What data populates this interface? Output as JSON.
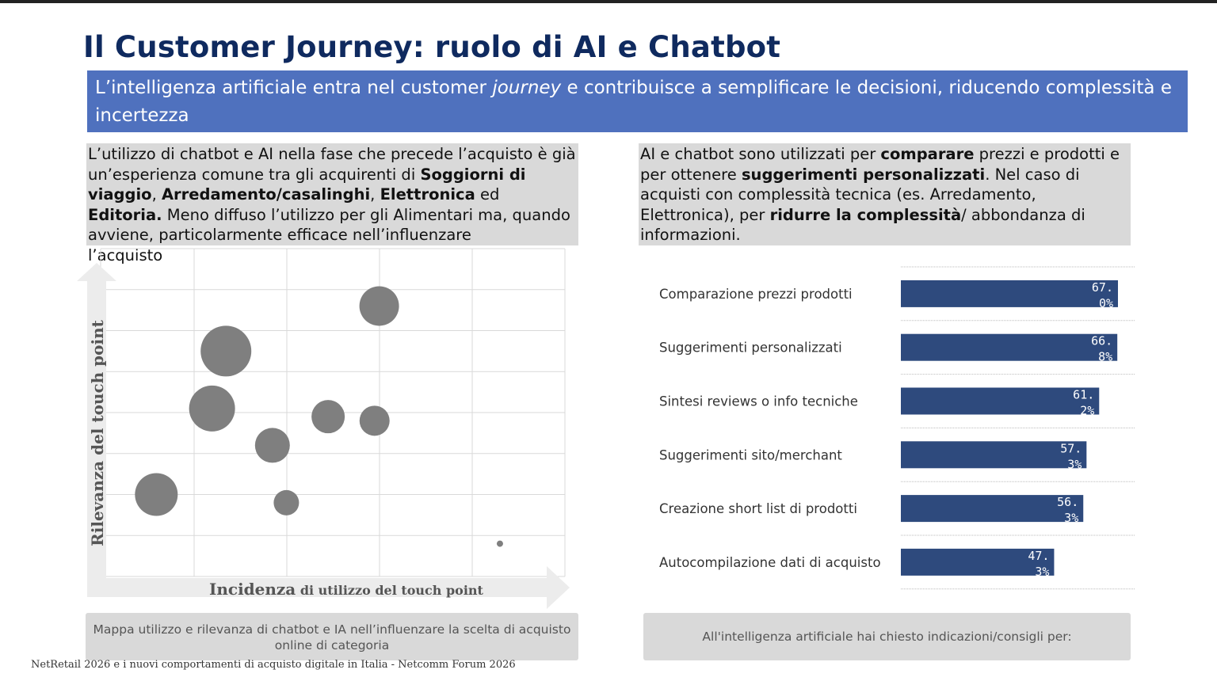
{
  "title": "Il Customer Journey: ruolo di AI e Chatbot",
  "banner": {
    "part1": "L’intelligenza artificiale entra nel customer ",
    "italic": "journey",
    "part2": " e contribuisce a semplificare le decisioni, riducendo complessità e incertezza"
  },
  "left_text": {
    "t1": "L’utilizzo di chatbot e AI nella fase che precede l’acquisto è già un’esperienza comune tra gli acquirenti di ",
    "b1": "Soggiorni di viaggio",
    "t2": ", ",
    "b2": "Arredamento/casalinghi",
    "t3": ", ",
    "b3": "Elettronica",
    "t4": " ed ",
    "b4": "Editoria.",
    "t5": " Meno diffuso l’utilizzo per gli Alimentari ma, quando avviene, particolarmente efficace nell’influenzare",
    "t6": "l’acquisto"
  },
  "right_text": {
    "t1": "AI e chatbot sono utilizzati per ",
    "b1": "comparare",
    "t2": " prezzi e prodotti e per ottenere ",
    "b2": "suggerimenti personalizzati",
    "t3": ". Nel caso di acquisti con complessità tecnica (es. Arredamento, Elettronica), per ",
    "b3": "ridurre la complessità",
    "t4": "/ abbondanza di informazioni."
  },
  "captions": {
    "left": "Mappa utilizzo e rilevanza di chatbot e IA nell’influenzare la scelta di acquisto online di categoria",
    "right": "All'intelligenza artificiale hai chiesto indicazioni/consigli per:"
  },
  "footer": "NetRetail 2026 e i nuovi comportamenti di acquisto digitale in Italia - Netcomm Forum 2026",
  "colors": {
    "title": "#0f2a5f",
    "banner": "#4f71be",
    "bar": "#2e4a7d",
    "bubble": "#7f7f7f",
    "box": "#d9d9d9"
  },
  "chart_data": [
    {
      "type": "scatter",
      "title": "",
      "xlabel_bold": "Incidenza",
      "xlabel_rest": " di utilizzo del touch point",
      "ylabel": "Rilevanza del touch point",
      "grid": true,
      "xlim": [
        0,
        10
      ],
      "ylim": [
        0,
        8
      ],
      "points": [
        {
          "x": 6.0,
          "y": 6.6,
          "size": 25
        },
        {
          "x": 2.7,
          "y": 5.5,
          "size": 32
        },
        {
          "x": 2.4,
          "y": 4.1,
          "size": 29
        },
        {
          "x": 4.9,
          "y": 3.9,
          "size": 21
        },
        {
          "x": 5.9,
          "y": 3.8,
          "size": 19
        },
        {
          "x": 3.7,
          "y": 3.2,
          "size": 22
        },
        {
          "x": 1.2,
          "y": 2.0,
          "size": 27
        },
        {
          "x": 4.0,
          "y": 1.8,
          "size": 16
        },
        {
          "x": 8.6,
          "y": 0.8,
          "size": 4
        }
      ]
    },
    {
      "type": "bar",
      "orientation": "horizontal",
      "categories": [
        "Comparazione prezzi prodotti",
        "Suggerimenti personalizzati",
        "Sintesi reviews o info tecniche",
        "Suggerimenti sito/merchant",
        "Creazione short list di prodotti",
        "Autocompilazione dati di acquisto"
      ],
      "values": [
        67.0,
        66.8,
        61.2,
        57.3,
        56.3,
        47.3
      ],
      "labels": [
        [
          "67.",
          "0%"
        ],
        [
          "66.",
          "8%"
        ],
        [
          "61.",
          "2%"
        ],
        [
          "57.",
          "3%"
        ],
        [
          "56.",
          "3%"
        ],
        [
          "47.",
          "3%"
        ]
      ],
      "unit": "%"
    }
  ]
}
